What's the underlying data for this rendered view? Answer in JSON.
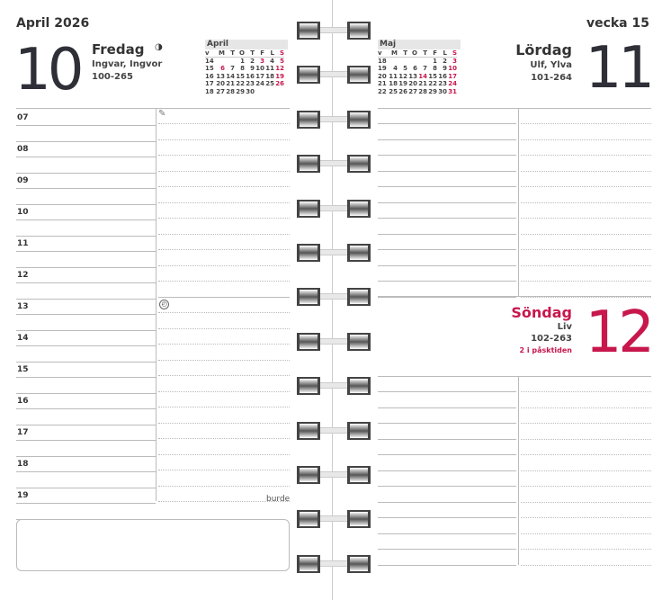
{
  "left": {
    "month_year": "April 2026",
    "day_number": "10",
    "day_name": "Fredag",
    "moon_icon": "half-moon-icon",
    "name_days": "Ingvar, Ingvor",
    "day_count": "100-265",
    "hours": [
      "07",
      "08",
      "09",
      "10",
      "11",
      "12",
      "13",
      "14",
      "15",
      "16",
      "17",
      "18",
      "19"
    ],
    "brand": "burde",
    "pencil_icon": "pencil-icon",
    "clock_icon": "clock-icon"
  },
  "right": {
    "week": "vecka 15",
    "saturday": {
      "day_number": "11",
      "day_name": "Lördag",
      "name_days": "Ulf, Ylva",
      "day_count": "101-264"
    },
    "sunday": {
      "day_number": "12",
      "day_name": "Söndag",
      "name_days": "Liv",
      "day_count": "102-263",
      "note": "2 i påsktiden"
    }
  },
  "mini_april": {
    "title": "April",
    "header": [
      "v",
      "M",
      "T",
      "O",
      "T",
      "F",
      "L",
      "S"
    ],
    "rows": [
      [
        "14",
        "",
        "",
        "1",
        "2",
        "3",
        "4",
        "5"
      ],
      [
        "15",
        "6",
        "7",
        "8",
        "9",
        "10",
        "11",
        "12"
      ],
      [
        "16",
        "13",
        "14",
        "15",
        "16",
        "17",
        "18",
        "19"
      ],
      [
        "17",
        "20",
        "21",
        "22",
        "23",
        "24",
        "25",
        "26"
      ],
      [
        "18",
        "27",
        "28",
        "29",
        "30",
        "",
        "",
        ""
      ]
    ],
    "red": [
      "3",
      "5",
      "6",
      "12",
      "19",
      "26"
    ]
  },
  "mini_maj": {
    "title": "Maj",
    "header": [
      "v",
      "M",
      "T",
      "O",
      "T",
      "F",
      "L",
      "S"
    ],
    "rows": [
      [
        "18",
        "",
        "",
        "",
        "",
        "1",
        "2",
        "3"
      ],
      [
        "19",
        "4",
        "5",
        "6",
        "7",
        "8",
        "9",
        "10"
      ],
      [
        "20",
        "11",
        "12",
        "13",
        "14",
        "15",
        "16",
        "17"
      ],
      [
        "21",
        "18",
        "19",
        "20",
        "21",
        "22",
        "23",
        "24"
      ],
      [
        "22",
        "25",
        "26",
        "27",
        "28",
        "29",
        "30",
        "31"
      ]
    ],
    "red": [
      "3",
      "10",
      "14",
      "17",
      "24",
      "31"
    ]
  },
  "colors": {
    "accent_red": "#c8174d",
    "text": "#2f2f38"
  }
}
